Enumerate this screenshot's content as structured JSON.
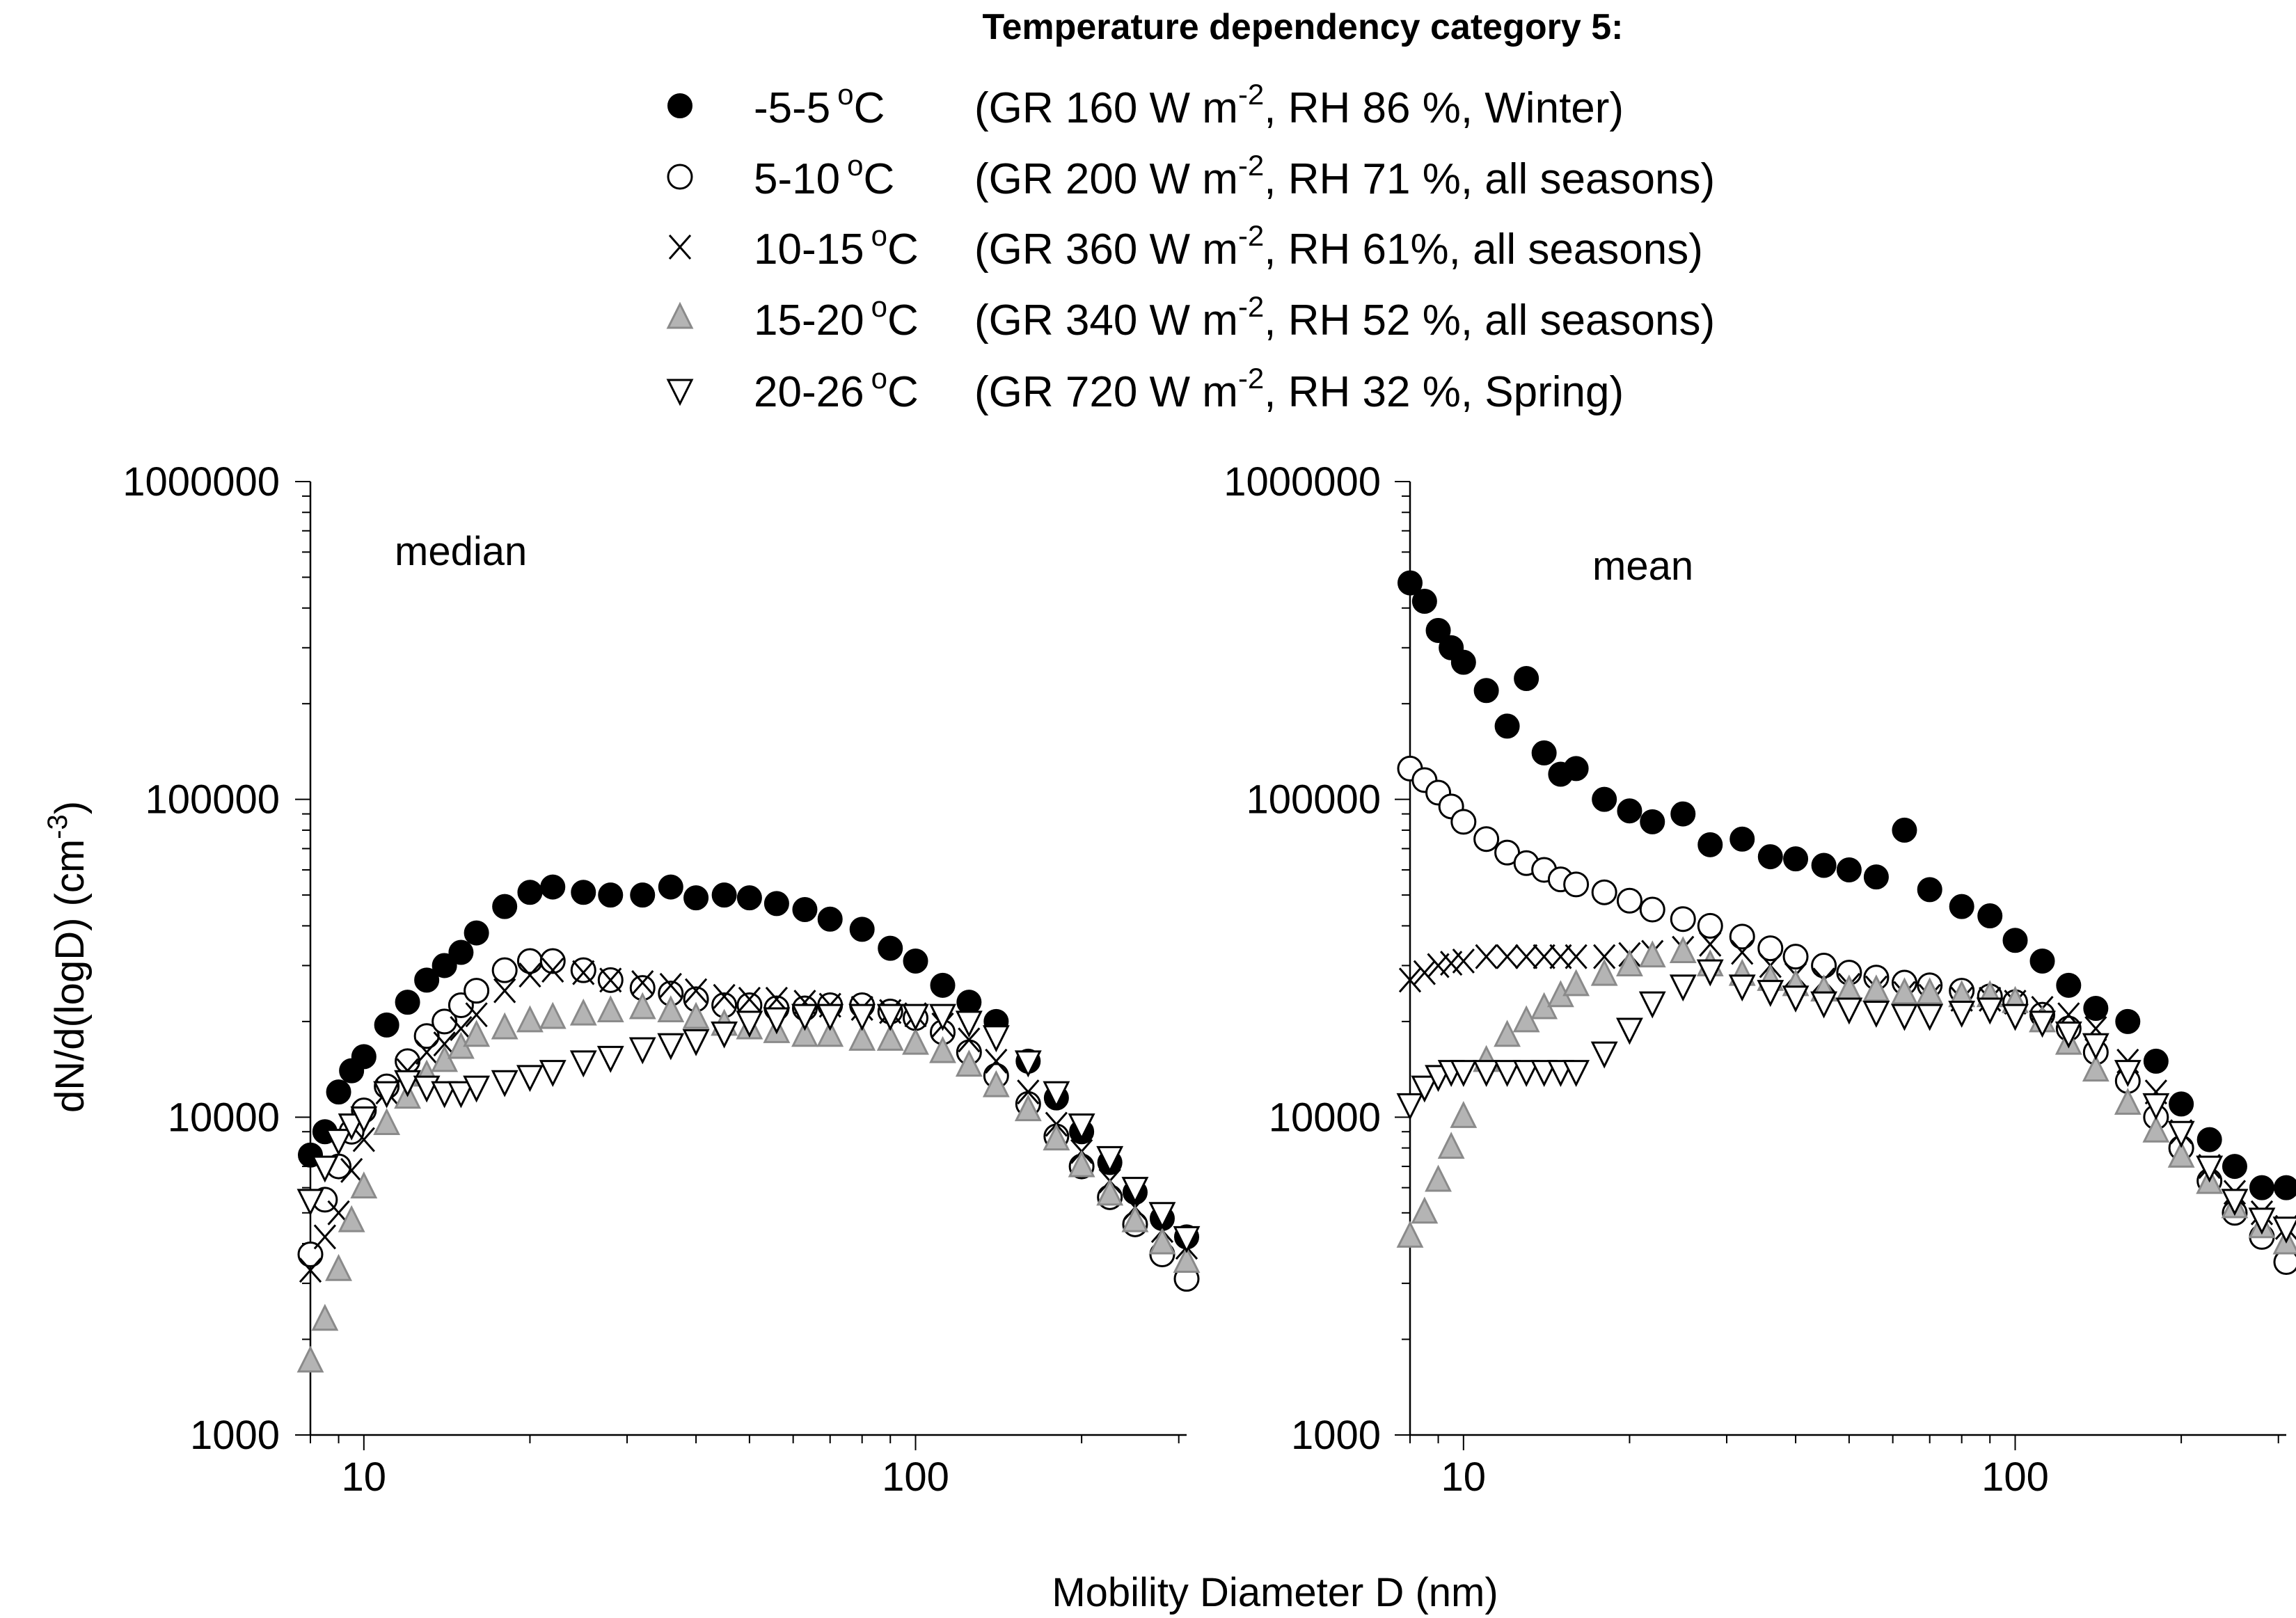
{
  "legend": {
    "title": "Temperature dependency category 5:",
    "items": [
      {
        "marker": "filled-circle",
        "range": "-5-5",
        "deg_sup": "o",
        "deg_unit": "C",
        "cond_a": "(GR 160 W m",
        "cond_sup": "-2",
        "cond_b": ", RH 86 %, Winter)"
      },
      {
        "marker": "open-circle",
        "range": "5-10",
        "deg_sup": "o",
        "deg_unit": "C",
        "cond_a": "(GR 200 W m",
        "cond_sup": "-2",
        "cond_b": ", RH 71 %, all seasons)"
      },
      {
        "marker": "cross",
        "range": "10-15",
        "deg_sup": "o",
        "deg_unit": "C",
        "cond_a": "(GR 360 W m",
        "cond_sup": "-2",
        "cond_b": ", RH 61%, all seasons)"
      },
      {
        "marker": "grey-triangle-up",
        "range": "15-20",
        "deg_sup": "o",
        "deg_unit": "C",
        "cond_a": "(GR 340 W m",
        "cond_sup": "-2",
        "cond_b": ", RH 52 %, all seasons)"
      },
      {
        "marker": "open-triangle-down",
        "range": "20-26",
        "deg_sup": "o",
        "deg_unit": "C",
        "cond_a": "(GR 720 W m",
        "cond_sup": "-2",
        "cond_b": ", RH 32 %, Spring)"
      }
    ]
  },
  "colors": {
    "filled": "#000000",
    "open": "#ffffff",
    "grey_fill": "#b4b4b4",
    "grey_stroke": "#8a8a8a"
  },
  "ylabel": {
    "main": "dN/d(logD)  (cm",
    "sup": "-3",
    "close": ")"
  },
  "xlabel": "Mobility Diameter D (nm)",
  "chart_data": [
    {
      "type": "scatter",
      "panel_label": "median",
      "xscale": "log",
      "yscale": "log",
      "xlim": [
        8,
        310
      ],
      "ylim": [
        1000,
        1000000
      ],
      "xticks": [
        "10",
        "100"
      ],
      "yticks": [
        "1000",
        "10000",
        "100000",
        "1000000"
      ],
      "grid": false,
      "x": [
        8,
        8.5,
        9,
        9.5,
        10,
        11,
        12,
        13,
        14,
        15,
        16,
        18,
        20,
        22,
        25,
        28,
        32,
        36,
        40,
        45,
        50,
        56,
        63,
        70,
        80,
        90,
        100,
        112,
        125,
        140,
        160,
        180,
        200,
        225,
        250,
        280,
        310
      ],
      "series": [
        {
          "name": "-5-5 °C",
          "marker": "filled-circle",
          "values": [
            7600,
            9000,
            12000,
            14000,
            15500,
            19500,
            23000,
            27000,
            30000,
            33000,
            38000,
            46000,
            51000,
            53000,
            51000,
            50000,
            50000,
            53000,
            49000,
            50000,
            49000,
            47000,
            45000,
            42000,
            39000,
            34000,
            31000,
            26000,
            23000,
            20000,
            15000,
            11500,
            9000,
            7200,
            5800,
            4800,
            4200
          ]
        },
        {
          "name": "5-10 °C",
          "marker": "open-circle",
          "values": [
            3700,
            5500,
            7000,
            9000,
            10500,
            12500,
            15000,
            18000,
            20000,
            22500,
            25000,
            29000,
            31000,
            31000,
            29000,
            27000,
            25500,
            24500,
            23500,
            22500,
            22500,
            22000,
            22000,
            22500,
            22500,
            21500,
            20500,
            18500,
            16000,
            13500,
            11000,
            8700,
            7000,
            5600,
            4600,
            3700,
            3100
          ]
        },
        {
          "name": "10-15 °C",
          "marker": "cross",
          "values": [
            3300,
            4200,
            5000,
            6800,
            8500,
            12000,
            14000,
            16000,
            17000,
            19000,
            21000,
            25000,
            28000,
            29000,
            28500,
            27000,
            26500,
            26000,
            25000,
            24000,
            23500,
            23500,
            23000,
            22500,
            22000,
            21500,
            21000,
            19500,
            17500,
            15000,
            12000,
            9500,
            7800,
            6300,
            5200,
            4400,
            3900
          ]
        },
        {
          "name": "15-20 °C",
          "marker": "grey-triangle-up",
          "values": [
            1700,
            2300,
            3300,
            4700,
            6000,
            9500,
            11500,
            13500,
            15000,
            16500,
            18000,
            19000,
            20000,
            20500,
            21000,
            21500,
            22000,
            21500,
            20500,
            19500,
            19000,
            18500,
            18000,
            18000,
            17500,
            17500,
            17000,
            16000,
            14500,
            12500,
            10500,
            8500,
            7000,
            5700,
            4700,
            4000,
            3500
          ]
        },
        {
          "name": "20-26 °C",
          "marker": "open-triangle-down",
          "values": [
            5500,
            7000,
            8500,
            9500,
            10000,
            12000,
            13000,
            12500,
            12000,
            12000,
            12500,
            13000,
            13500,
            14000,
            15000,
            15500,
            16500,
            17000,
            17500,
            18500,
            20000,
            20500,
            21000,
            21000,
            21000,
            21000,
            21000,
            21000,
            20000,
            18000,
            15000,
            12000,
            9500,
            7500,
            6000,
            5000,
            4200
          ]
        }
      ]
    },
    {
      "type": "scatter",
      "panel_label": "mean",
      "xscale": "log",
      "yscale": "log",
      "xlim": [
        8,
        310
      ],
      "ylim": [
        1000,
        1000000
      ],
      "xticks": [
        "10",
        "100"
      ],
      "yticks": [
        "1000",
        "10000",
        "100000",
        "1000000"
      ],
      "grid": false,
      "x": [
        8,
        8.5,
        9,
        9.5,
        10,
        11,
        12,
        13,
        14,
        15,
        16,
        18,
        20,
        22,
        25,
        28,
        32,
        36,
        40,
        45,
        50,
        56,
        63,
        70,
        80,
        90,
        100,
        112,
        125,
        140,
        160,
        180,
        200,
        225,
        250,
        280,
        310
      ],
      "series": [
        {
          "name": "-5-5 °C",
          "marker": "filled-circle",
          "values": [
            480000,
            420000,
            340000,
            300000,
            270000,
            220000,
            170000,
            240000,
            140000,
            120000,
            125000,
            100000,
            92000,
            85000,
            90000,
            72000,
            75000,
            66000,
            65000,
            62000,
            60000,
            57000,
            80000,
            52000,
            46000,
            43000,
            36000,
            31000,
            26000,
            22000,
            20000,
            15000,
            11000,
            8500,
            7000,
            6000,
            6000
          ]
        },
        {
          "name": "5-10 °C",
          "marker": "open-circle",
          "values": [
            125000,
            115000,
            105000,
            95000,
            85000,
            75000,
            68000,
            63000,
            60000,
            56000,
            54000,
            51000,
            48000,
            45000,
            42000,
            40000,
            37000,
            34000,
            32000,
            30000,
            28500,
            27500,
            26500,
            26000,
            25000,
            24000,
            23000,
            21000,
            19000,
            16000,
            13000,
            10000,
            8000,
            6300,
            5000,
            4200,
            3500
          ]
        },
        {
          "name": "10-15 °C",
          "marker": "cross",
          "values": [
            27000,
            28500,
            30000,
            30500,
            31000,
            32000,
            32000,
            32000,
            32000,
            32000,
            32000,
            32000,
            32500,
            33000,
            34000,
            35000,
            33000,
            30000,
            28000,
            27000,
            26000,
            25500,
            24500,
            24000,
            23500,
            23500,
            23000,
            22000,
            21000,
            19000,
            15000,
            12000,
            9000,
            7000,
            5800,
            5000,
            4500
          ]
        },
        {
          "name": "15-20 °C",
          "marker": "grey-triangle-up",
          "values": [
            4200,
            5000,
            6300,
            8000,
            10000,
            15000,
            18000,
            20000,
            22000,
            24000,
            26000,
            28000,
            30000,
            32000,
            33000,
            30000,
            28000,
            27000,
            26000,
            25000,
            25000,
            25000,
            24500,
            24500,
            24000,
            24000,
            23000,
            20000,
            17000,
            14000,
            11000,
            9000,
            7500,
            6200,
            5200,
            4500,
            4000
          ]
        },
        {
          "name": "20-26 °C",
          "marker": "open-triangle-down",
          "values": [
            11000,
            12500,
            13500,
            14000,
            14000,
            14000,
            14000,
            14000,
            14000,
            14000,
            14000,
            16000,
            19000,
            23000,
            26000,
            29000,
            26000,
            25000,
            24000,
            23000,
            22000,
            21500,
            21000,
            21000,
            21500,
            22000,
            21000,
            20000,
            18500,
            17000,
            14000,
            11000,
            9000,
            7000,
            5500,
            4800,
            4500
          ]
        }
      ]
    }
  ]
}
